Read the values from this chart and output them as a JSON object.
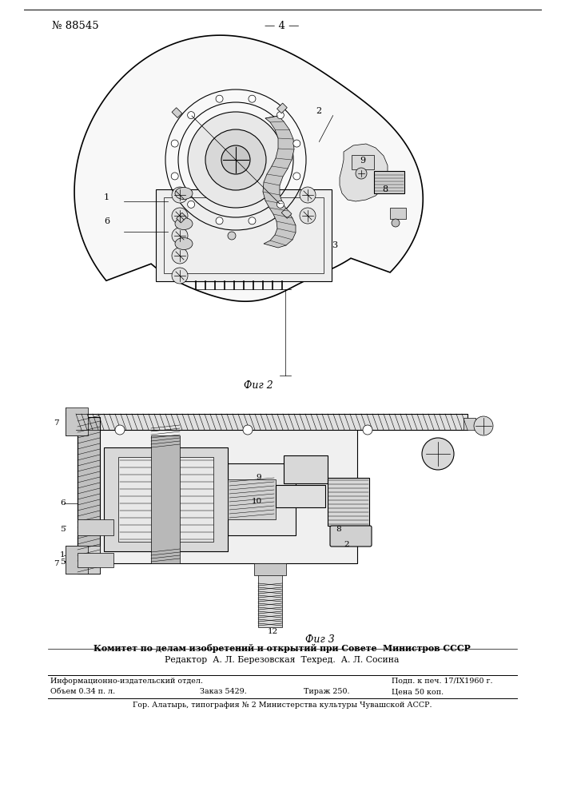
{
  "bg_color": "#ffffff",
  "header_number": "№ 88545",
  "header_page": "— 4 —",
  "fig2_label": "Фиг 2",
  "fig3_label": "Фиг 3",
  "footer_line1": "Комитет по делам изобретений и открытий при Совете  Министров СССР",
  "footer_line2": "Редактор  А. Л. Березовская  Техред.  А. Л. Сосина",
  "footer_line3a": "Информационно-издательский отдел.",
  "footer_line3b": "Подп. к печ. 17/IX1960 г.",
  "footer_line4a": "Объем 0.34 п. л.",
  "footer_line4b": "Заказ 5429.",
  "footer_line4c": "Тираж 250.",
  "footer_line4d": "Цена 50 коп.",
  "footer_line5": "Гор. Алатырь, типография № 2 Министерства культуры Чувашской АССР."
}
